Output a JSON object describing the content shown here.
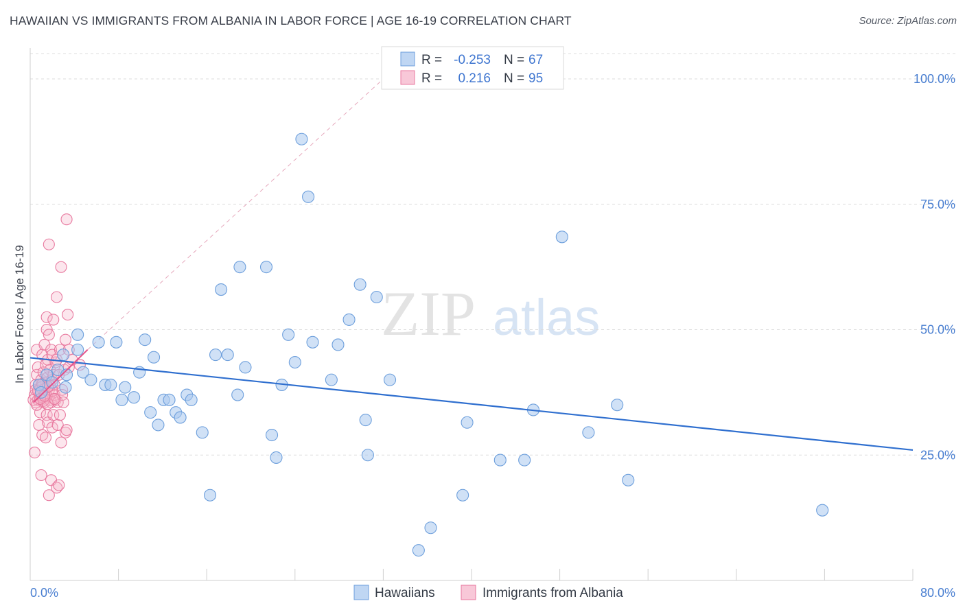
{
  "header": {
    "title": "HAWAIIAN VS IMMIGRANTS FROM ALBANIA IN LABOR FORCE | AGE 16-19 CORRELATION CHART",
    "source": "Source: ZipAtlas.com"
  },
  "colors": {
    "blue_fill": "#a9c8ef",
    "blue_stroke": "#6d9fdc",
    "blue_line": "#2f6fcf",
    "pink_fill": "#f6b6cb",
    "pink_stroke": "#e8799f",
    "pink_line": "#e4528a",
    "grid": "#dcdcdc",
    "label_blue": "#4a7fd1"
  },
  "watermark": {
    "zip": "ZIP",
    "atlas": "atlas"
  },
  "legend_box": {
    "rows": [
      {
        "r_label": "R =",
        "r_value": "-0.253",
        "n_label": "N =",
        "n_value": "67",
        "series": "blue"
      },
      {
        "r_label": "R =",
        "r_value": "0.216",
        "n_label": "N =",
        "n_value": "95",
        "series": "pink"
      }
    ]
  },
  "bottom_legend": {
    "items": [
      {
        "label": "Hawaiians",
        "series": "blue"
      },
      {
        "label": "Immigrants from Albania",
        "series": "pink"
      }
    ]
  },
  "chart_data": {
    "type": "scatter",
    "title": "HAWAIIAN VS IMMIGRANTS FROM ALBANIA IN LABOR FORCE | AGE 16-19 CORRELATION CHART",
    "xlabel": "",
    "ylabel": "In Labor Force | Age 16-19",
    "xlim": [
      0,
      80
    ],
    "ylim": [
      0,
      105
    ],
    "x_tick_labels": [
      "0.0%",
      "80.0%"
    ],
    "y_ticks": [
      25,
      50,
      75,
      100
    ],
    "y_tick_labels": [
      "25.0%",
      "50.0%",
      "75.0%",
      "100.0%"
    ],
    "grid": true,
    "series": [
      {
        "name": "Hawaiians",
        "color": "blue",
        "points": [
          [
            0.8,
            39
          ],
          [
            1.0,
            37.5
          ],
          [
            1.5,
            41
          ],
          [
            2.0,
            39.5
          ],
          [
            2.5,
            42
          ],
          [
            3.0,
            45
          ],
          [
            3.3,
            41
          ],
          [
            3.2,
            38.5
          ],
          [
            4.3,
            46
          ],
          [
            4.3,
            49
          ],
          [
            4.8,
            41.5
          ],
          [
            5.5,
            40
          ],
          [
            6.2,
            47.5
          ],
          [
            6.8,
            39
          ],
          [
            7.3,
            39
          ],
          [
            7.8,
            47.5
          ],
          [
            8.3,
            36
          ],
          [
            8.6,
            38.5
          ],
          [
            9.4,
            36.5
          ],
          [
            9.9,
            41.5
          ],
          [
            10.4,
            48
          ],
          [
            10.9,
            33.5
          ],
          [
            11.2,
            44.5
          ],
          [
            11.6,
            31
          ],
          [
            12.1,
            36
          ],
          [
            12.6,
            36
          ],
          [
            13.2,
            33.5
          ],
          [
            13.6,
            32.5
          ],
          [
            14.2,
            37
          ],
          [
            14.6,
            36
          ],
          [
            15.6,
            29.5
          ],
          [
            16.3,
            17
          ],
          [
            16.8,
            45
          ],
          [
            17.3,
            58
          ],
          [
            17.9,
            45
          ],
          [
            18.8,
            37
          ],
          [
            19.0,
            62.5
          ],
          [
            19.5,
            42.5
          ],
          [
            21.4,
            62.5
          ],
          [
            21.9,
            29
          ],
          [
            22.3,
            24.5
          ],
          [
            22.8,
            39
          ],
          [
            23.4,
            49
          ],
          [
            24.0,
            43.5
          ],
          [
            24.6,
            88
          ],
          [
            25.2,
            76.5
          ],
          [
            25.6,
            47.5
          ],
          [
            27.3,
            40
          ],
          [
            27.9,
            47
          ],
          [
            28.9,
            52
          ],
          [
            29.9,
            59
          ],
          [
            30.4,
            32
          ],
          [
            30.6,
            25
          ],
          [
            31.4,
            56.5
          ],
          [
            32.6,
            40
          ],
          [
            35.2,
            6
          ],
          [
            36.3,
            10.5
          ],
          [
            39.2,
            17
          ],
          [
            39.6,
            31.5
          ],
          [
            42.6,
            24
          ],
          [
            44.8,
            24
          ],
          [
            45.6,
            34
          ],
          [
            48.2,
            68.5
          ],
          [
            50.6,
            29.5
          ],
          [
            53.2,
            35
          ],
          [
            54.2,
            20
          ],
          [
            71.8,
            14
          ]
        ],
        "trend": {
          "x": [
            0,
            80
          ],
          "y": [
            44.4,
            26
          ]
        }
      },
      {
        "name": "Immigrants from Albania",
        "color": "pink",
        "points": [
          [
            0.4,
            25.5
          ],
          [
            0.4,
            37
          ],
          [
            0.5,
            35.5
          ],
          [
            0.5,
            39
          ],
          [
            0.6,
            41
          ],
          [
            0.6,
            46
          ],
          [
            0.7,
            36
          ],
          [
            0.7,
            42.5
          ],
          [
            0.8,
            31
          ],
          [
            0.8,
            37.5
          ],
          [
            0.9,
            33.5
          ],
          [
            0.9,
            38.5
          ],
          [
            1.0,
            21
          ],
          [
            1.0,
            36
          ],
          [
            1.0,
            40
          ],
          [
            1.1,
            45
          ],
          [
            1.1,
            29
          ],
          [
            1.2,
            37
          ],
          [
            1.2,
            41.5
          ],
          [
            1.2,
            38
          ],
          [
            1.3,
            35.5
          ],
          [
            1.3,
            47
          ],
          [
            1.4,
            43
          ],
          [
            1.4,
            39.5
          ],
          [
            1.4,
            28.5
          ],
          [
            1.5,
            33
          ],
          [
            1.5,
            36.5
          ],
          [
            1.5,
            50
          ],
          [
            1.5,
            52.5
          ],
          [
            1.6,
            40.5
          ],
          [
            1.6,
            44
          ],
          [
            1.6,
            31.5
          ],
          [
            1.7,
            17
          ],
          [
            1.7,
            38
          ],
          [
            1.7,
            49
          ],
          [
            1.7,
            67
          ],
          [
            1.8,
            36
          ],
          [
            1.8,
            42
          ],
          [
            1.9,
            35.5
          ],
          [
            1.9,
            46
          ],
          [
            1.9,
            20
          ],
          [
            2.0,
            30.5
          ],
          [
            2.0,
            40
          ],
          [
            2.0,
            45
          ],
          [
            2.1,
            52
          ],
          [
            2.1,
            41
          ],
          [
            2.1,
            33
          ],
          [
            2.2,
            37
          ],
          [
            2.2,
            39
          ],
          [
            2.3,
            43.5
          ],
          [
            2.3,
            36
          ],
          [
            2.4,
            56.5
          ],
          [
            2.4,
            44
          ],
          [
            2.4,
            18.5
          ],
          [
            2.5,
            31
          ],
          [
            2.5,
            35.5
          ],
          [
            2.6,
            41
          ],
          [
            2.6,
            19
          ],
          [
            2.7,
            33
          ],
          [
            2.7,
            46
          ],
          [
            2.8,
            62.5
          ],
          [
            2.8,
            27.5
          ],
          [
            2.9,
            38
          ],
          [
            2.9,
            37
          ],
          [
            3.0,
            35.5
          ],
          [
            3.1,
            42
          ],
          [
            3.2,
            29.5
          ],
          [
            3.2,
            48
          ],
          [
            3.3,
            30
          ],
          [
            3.3,
            72
          ],
          [
            3.4,
            53
          ],
          [
            3.5,
            46
          ],
          [
            3.5,
            42.5
          ],
          [
            0.3,
            36
          ],
          [
            0.5,
            38
          ],
          [
            0.6,
            35
          ],
          [
            0.8,
            39
          ],
          [
            0.9,
            37
          ],
          [
            1.0,
            38.5
          ],
          [
            1.1,
            36.5
          ],
          [
            1.2,
            35.8
          ],
          [
            1.3,
            38.2
          ],
          [
            1.4,
            37.2
          ],
          [
            1.5,
            36.8
          ],
          [
            1.6,
            35.2
          ],
          [
            1.8,
            38.8
          ],
          [
            2.0,
            37.8
          ],
          [
            2.2,
            36.2
          ],
          [
            0.7,
            37.8
          ],
          [
            0.9,
            36.2
          ],
          [
            1.1,
            39.2
          ],
          [
            1.3,
            36.8
          ],
          [
            1.6,
            38.6
          ],
          [
            4.5,
            43
          ],
          [
            3.8,
            44
          ]
        ],
        "trend": {
          "x": [
            0.3,
            5.2
          ],
          "y": [
            35.5,
            46
          ]
        }
      }
    ],
    "reference_line": {
      "x": [
        5.2,
        32
      ],
      "y": [
        46,
        100
      ]
    }
  }
}
